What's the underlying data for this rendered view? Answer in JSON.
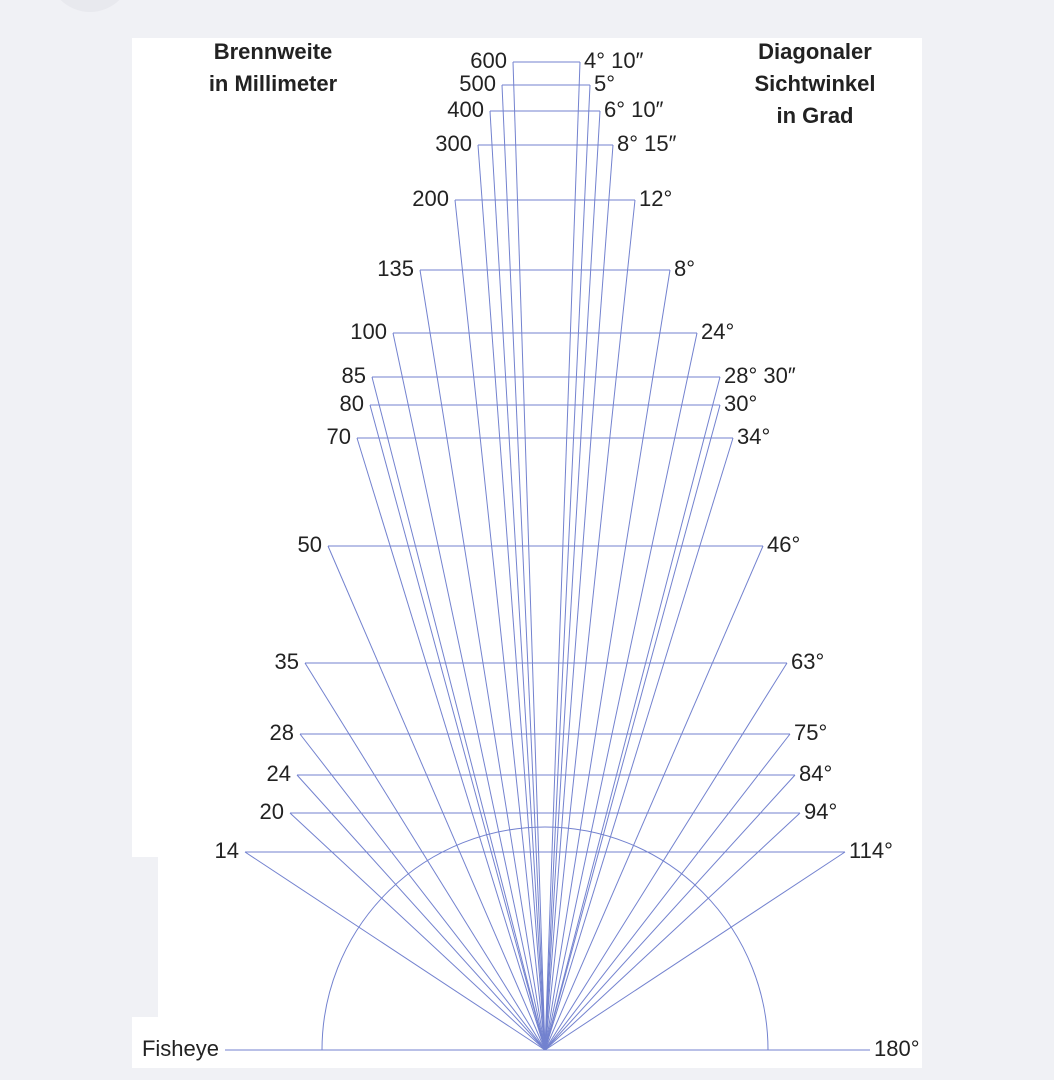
{
  "header": {
    "left": [
      "Brennweite",
      "in Millimeter"
    ],
    "right": [
      "Diagonaler",
      "Sichtwinkel",
      "in Grad"
    ]
  },
  "rows": [
    {
      "focal": "600",
      "angle": "4° 10″"
    },
    {
      "focal": "500",
      "angle": "5°"
    },
    {
      "focal": "400",
      "angle": "6° 10″"
    },
    {
      "focal": "300",
      "angle": "8° 15″"
    },
    {
      "focal": "200",
      "angle": "12°"
    },
    {
      "focal": "135",
      "angle": "8°"
    },
    {
      "focal": "100",
      "angle": "24°"
    },
    {
      "focal": "85",
      "angle": "28° 30″"
    },
    {
      "focal": "80",
      "angle": "30°"
    },
    {
      "focal": "70",
      "angle": "34°"
    },
    {
      "focal": "50",
      "angle": "46°"
    },
    {
      "focal": "35",
      "angle": "63°"
    },
    {
      "focal": "28",
      "angle": "75°"
    },
    {
      "focal": "24",
      "angle": "84°"
    },
    {
      "focal": "20",
      "angle": "94°"
    },
    {
      "focal": "14",
      "angle": "114°"
    },
    {
      "focal": "Fisheye",
      "angle": "180°"
    }
  ]
}
